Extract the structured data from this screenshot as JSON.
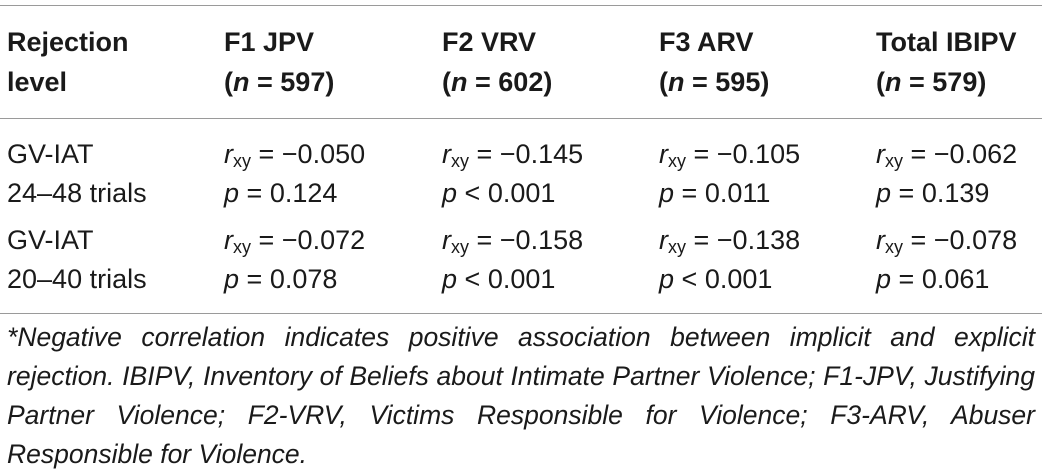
{
  "header": {
    "col0_line1": "Rejection",
    "col0_line2": "level",
    "col1_name": "F1 JPV",
    "col1_n": "597",
    "col2_name": "F2 VRV",
    "col2_n": "602",
    "col3_name": "F3 ARV",
    "col3_n": "595",
    "col4_name": "Total IBIPV",
    "col4_n": "579",
    "n_symbol": "n",
    "equals": " = "
  },
  "rows": [
    {
      "label_line1": "GV-IAT",
      "label_line2": "24–48 trials",
      "r": [
        "= −0.050",
        "= −0.145",
        "= −0.105",
        "= −0.062"
      ],
      "p": [
        "= 0.124",
        "< 0.001",
        "= 0.011",
        "= 0.139"
      ]
    },
    {
      "label_line1": "GV-IAT",
      "label_line2": "20–40 trials",
      "r": [
        "= −0.072",
        "= −0.158",
        "= −0.138",
        "= −0.078"
      ],
      "p": [
        "= 0.078",
        "< 0.001",
        "< 0.001",
        "= 0.061"
      ]
    }
  ],
  "symbols": {
    "r": "r",
    "r_sub": "xy",
    "p": "p"
  },
  "footnote": "*Negative correlation indicates positive association between implicit and explicit rejection. IBIPV, Inventory of Beliefs about Intimate Partner Violence; F1-JPV, Justifying Partner Violence; F2-VRV, Victims Responsible for Violence; F3-ARV, Abuser Responsible for Violence."
}
